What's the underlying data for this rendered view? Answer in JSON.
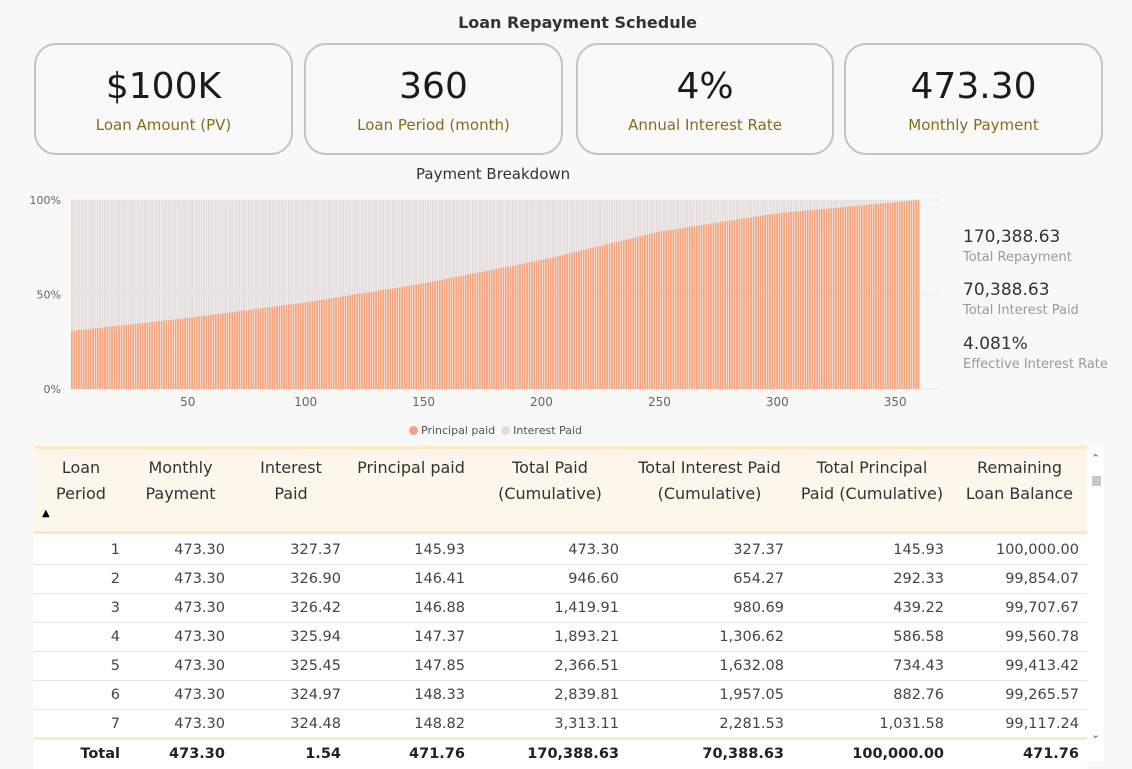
{
  "title": "Loan Repayment Schedule",
  "kpis": [
    {
      "value": "$100K",
      "label": "Loan Amount (PV)"
    },
    {
      "value": "360",
      "label": "Loan Period (month)"
    },
    {
      "value": "4%",
      "label": "Annual Interest Rate"
    },
    {
      "value": "473.30",
      "label": "Monthly Payment"
    }
  ],
  "chart_title": "Payment Breakdown",
  "chart_data": {
    "type": "bar",
    "stacked": "100%",
    "x_range": [
      1,
      360
    ],
    "x_ticks": [
      "50",
      "100",
      "150",
      "200",
      "250",
      "300",
      "350"
    ],
    "y_ticks": [
      "0%",
      "50%",
      "100%"
    ],
    "series": [
      {
        "name": "Principal paid",
        "color": "#f2a47e",
        "note_formula": "principal share rises from ~31% at period 1 to ~100% at period 360"
      },
      {
        "name": "Interest Paid",
        "color": "#e3dcda"
      }
    ],
    "principal_share_samples": {
      "x": [
        1,
        50,
        100,
        150,
        200,
        250,
        300,
        360
      ],
      "y": [
        0.308,
        0.376,
        0.458,
        0.559,
        0.682,
        0.833,
        0.93,
        1.0
      ]
    },
    "legend_position": "bottom"
  },
  "legend": {
    "principal": "Principal paid",
    "interest": "Interest Paid"
  },
  "side_stats": [
    {
      "value": "170,388.63",
      "label": "Total Repayment"
    },
    {
      "value": "70,388.63",
      "label": "Total Interest Paid"
    },
    {
      "value": "4.081%",
      "label": "Effective Interest Rate"
    }
  ],
  "table": {
    "headers": [
      "Loan Period",
      "Monthly Payment",
      "Interest Paid",
      "Principal paid",
      "Total Paid (Cumulative)",
      "Total Interest Paid (Cumulative)",
      "Total Principal Paid (Cumulative)",
      "Remaining Loan Balance"
    ],
    "rows": [
      [
        "1",
        "473.30",
        "327.37",
        "145.93",
        "473.30",
        "327.37",
        "145.93",
        "100,000.00"
      ],
      [
        "2",
        "473.30",
        "326.90",
        "146.41",
        "946.60",
        "654.27",
        "292.33",
        "99,854.07"
      ],
      [
        "3",
        "473.30",
        "326.42",
        "146.88",
        "1,419.91",
        "980.69",
        "439.22",
        "99,707.67"
      ],
      [
        "4",
        "473.30",
        "325.94",
        "147.37",
        "1,893.21",
        "1,306.62",
        "586.58",
        "99,560.78"
      ],
      [
        "5",
        "473.30",
        "325.45",
        "147.85",
        "2,366.51",
        "1,632.08",
        "734.43",
        "99,413.42"
      ],
      [
        "6",
        "473.30",
        "324.97",
        "148.33",
        "2,839.81",
        "1,957.05",
        "882.76",
        "99,265.57"
      ],
      [
        "7",
        "473.30",
        "324.48",
        "148.82",
        "3,313.11",
        "2,281.53",
        "1,031.58",
        "99,117.24"
      ]
    ],
    "total": [
      "Total",
      "473.30",
      "1.54",
      "471.76",
      "170,388.63",
      "70,388.63",
      "100,000.00",
      "471.76"
    ]
  }
}
